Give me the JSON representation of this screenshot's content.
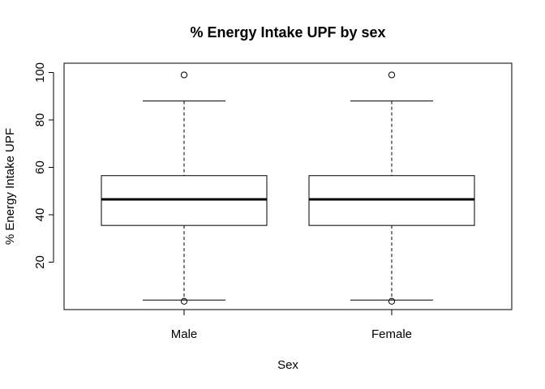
{
  "chart_data": {
    "type": "boxplot",
    "title": "% Energy Intake UPF by sex",
    "xlabel": "Sex",
    "ylabel": "% Energy Intake UPF",
    "ylim": [
      0,
      102
    ],
    "yticks": [
      20,
      40,
      60,
      80,
      100
    ],
    "categories": [
      "Male",
      "Female"
    ],
    "boxes": [
      {
        "category": "Male",
        "whisker_low": 4,
        "q1": 35.5,
        "median": 46.5,
        "q3": 56.5,
        "whisker_high": 88,
        "outliers": [
          99,
          3.5
        ]
      },
      {
        "category": "Female",
        "whisker_low": 4,
        "q1": 35.5,
        "median": 46.5,
        "q3": 56.5,
        "whisker_high": 88,
        "outliers": [
          99,
          3.5
        ]
      }
    ],
    "colors": {
      "box_fill": "#ffffff",
      "line": "#000000"
    }
  }
}
